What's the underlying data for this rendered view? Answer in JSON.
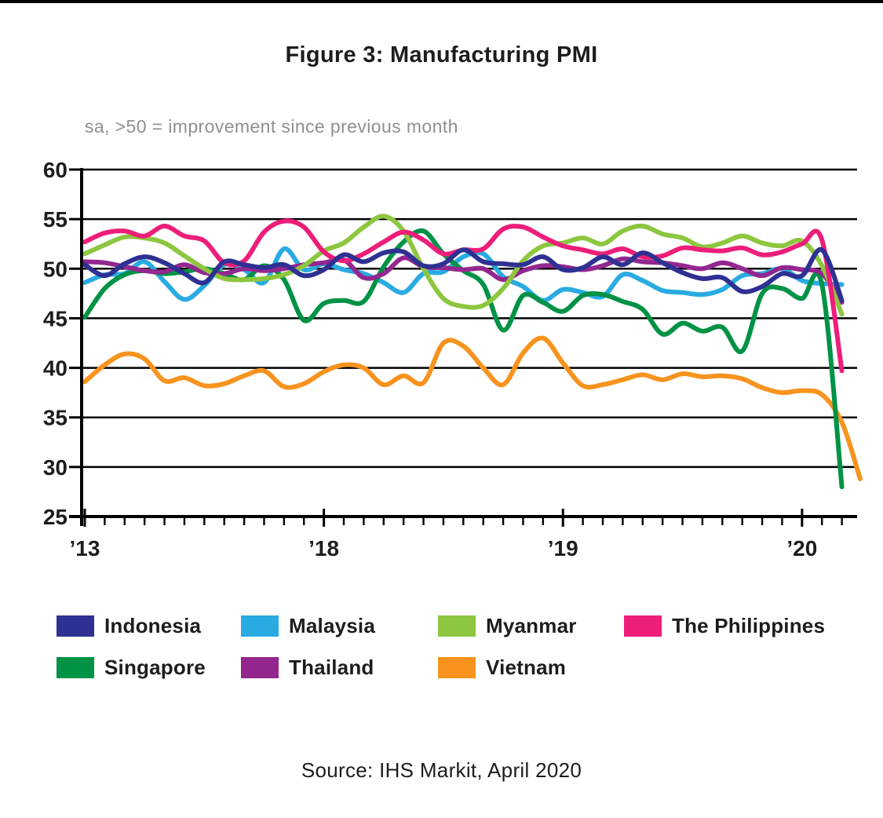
{
  "chart_data": {
    "type": "line",
    "title": "Figure 3: Manufacturing PMI",
    "subtitle": "sa, >50 = improvement since previous month",
    "source": "Source: IHS Markit, April 2020",
    "y_axis": {
      "min": 25,
      "max": 60,
      "step": 5,
      "ticks": [
        60,
        55,
        50,
        45,
        40,
        35,
        30,
        25
      ],
      "gridlines": true
    },
    "x_axis": {
      "tick_labels": [
        "’13",
        "’18",
        "’19",
        "’20"
      ],
      "tick_month_indices": [
        0,
        12,
        24,
        36
      ],
      "minor_ticks": "monthly",
      "months_total": 40
    },
    "legend_position": "bottom",
    "axis_color": "#000000",
    "draw_order": [
      1,
      6,
      4,
      5,
      2,
      3,
      0
    ],
    "series": [
      {
        "name": "Indonesia",
        "color": "#2e3192",
        "values": [
          50.4,
          49.3,
          50.5,
          51.2,
          50.6,
          49.5,
          48.6,
          50.7,
          50.4,
          50.1,
          50.4,
          49.3,
          49.9,
          51.4,
          50.7,
          51.6,
          51.7,
          50.3,
          50.5,
          51.9,
          50.7,
          50.5,
          50.4,
          51.2,
          49.9,
          50.1,
          51.2,
          50.4,
          51.6,
          50.6,
          49.6,
          49.0,
          49.1,
          47.7,
          48.2,
          49.5,
          49.3,
          51.9,
          46.8,
          null
        ]
      },
      {
        "name": "Malaysia",
        "color": "#29abe2",
        "values": [
          48.6,
          49.4,
          49.5,
          50.7,
          48.7,
          46.9,
          48.3,
          50.4,
          49.9,
          48.6,
          52.0,
          49.9,
          50.5,
          49.9,
          49.5,
          48.6,
          47.6,
          49.5,
          49.7,
          51.2,
          51.5,
          49.2,
          48.2,
          46.8,
          47.9,
          47.6,
          47.2,
          49.4,
          48.8,
          47.8,
          47.6,
          47.4,
          47.9,
          49.3,
          49.5,
          50.0,
          48.8,
          48.5,
          48.4,
          null
        ]
      },
      {
        "name": "Myanmar",
        "color": "#8dc63f",
        "values": [
          51.5,
          52.4,
          53.2,
          53.1,
          52.6,
          51.3,
          50.0,
          49.0,
          48.9,
          49.0,
          49.4,
          50.3,
          51.8,
          52.6,
          54.2,
          55.3,
          53.8,
          50.0,
          47.0,
          46.2,
          46.3,
          48.0,
          50.8,
          52.3,
          52.6,
          53.1,
          52.5,
          53.8,
          54.3,
          53.5,
          53.1,
          52.2,
          52.6,
          53.3,
          52.6,
          52.3,
          52.8,
          50.3,
          45.4,
          null
        ]
      },
      {
        "name": "The Philippines",
        "color": "#ed1e79",
        "values": [
          52.7,
          53.6,
          53.8,
          53.3,
          54.3,
          53.3,
          52.8,
          50.6,
          50.8,
          53.7,
          54.8,
          54.2,
          51.7,
          50.8,
          51.5,
          52.7,
          53.7,
          52.9,
          51.5,
          51.9,
          52.0,
          54.0,
          54.2,
          53.2,
          52.3,
          51.9,
          51.5,
          52.0,
          51.2,
          51.3,
          52.1,
          51.9,
          51.8,
          52.1,
          51.4,
          51.7,
          52.5,
          52.9,
          39.7,
          null
        ]
      },
      {
        "name": "Singapore",
        "color": "#009245",
        "values": [
          45.1,
          48.0,
          49.4,
          49.8,
          49.5,
          49.7,
          50.0,
          49.5,
          48.9,
          50.3,
          48.9,
          44.8,
          46.5,
          46.8,
          46.7,
          50.2,
          52.7,
          53.8,
          51.5,
          49.8,
          48.4,
          43.8,
          47.3,
          46.6,
          45.7,
          47.3,
          47.4,
          46.7,
          45.9,
          43.4,
          44.5,
          43.7,
          44.1,
          41.7,
          47.5,
          48.0,
          47.0,
          48.4,
          28.0,
          null
        ]
      },
      {
        "name": "Thailand",
        "color": "#93278f",
        "values": [
          50.7,
          50.6,
          50.2,
          49.8,
          49.7,
          50.4,
          49.6,
          49.5,
          50.0,
          49.8,
          50.0,
          50.4,
          50.6,
          50.9,
          49.1,
          49.5,
          51.1,
          50.2,
          50.1,
          49.9,
          50.0,
          48.9,
          49.8,
          50.3,
          50.2,
          49.9,
          50.3,
          51.0,
          50.7,
          50.6,
          50.3,
          50.0,
          50.6,
          50.0,
          49.3,
          50.1,
          49.9,
          49.5,
          46.6,
          null
        ]
      },
      {
        "name": "Vietnam",
        "color": "#f7931e",
        "values": [
          38.6,
          40.3,
          41.4,
          40.9,
          38.7,
          39.0,
          38.2,
          38.4,
          39.2,
          39.7,
          38.1,
          38.4,
          39.6,
          40.3,
          40.0,
          38.3,
          39.2,
          38.5,
          42.5,
          42.2,
          40.0,
          38.3,
          41.5,
          43.0,
          40.5,
          38.2,
          38.3,
          38.8,
          39.3,
          38.8,
          39.4,
          39.1,
          39.2,
          38.9,
          38.0,
          37.5,
          37.7,
          37.3,
          34.5,
          28.8
        ]
      }
    ],
    "legend_rows": [
      [
        0,
        1,
        2,
        3
      ],
      [
        4,
        5,
        6
      ]
    ]
  }
}
